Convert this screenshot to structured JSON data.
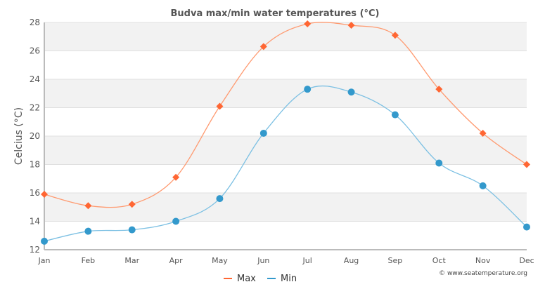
{
  "chart_data": {
    "type": "line",
    "title": "Budva max/min water temperatures (°C)",
    "ylabel": "Celcius (°C)",
    "xlabel": "",
    "categories": [
      "Jan",
      "Feb",
      "Mar",
      "Apr",
      "May",
      "Jun",
      "Jul",
      "Aug",
      "Sep",
      "Oct",
      "Nov",
      "Dec"
    ],
    "ylim": [
      12,
      28
    ],
    "yticks": [
      "12",
      "14",
      "16",
      "18",
      "20",
      "22",
      "24",
      "26",
      "28"
    ],
    "grid": true,
    "legend": "bottom",
    "series": [
      {
        "name": "Max",
        "color": "#ff6633",
        "marker": "diamond",
        "values": [
          15.9,
          15.1,
          15.2,
          17.1,
          22.1,
          26.3,
          27.9,
          27.8,
          27.1,
          23.3,
          20.2,
          18.0
        ]
      },
      {
        "name": "Min",
        "color": "#3399cc",
        "marker": "circle",
        "values": [
          12.6,
          13.3,
          13.4,
          14.0,
          15.6,
          20.2,
          23.3,
          23.1,
          21.5,
          18.1,
          16.5,
          13.6
        ]
      }
    ],
    "credit": "© www.seatemperature.org"
  }
}
